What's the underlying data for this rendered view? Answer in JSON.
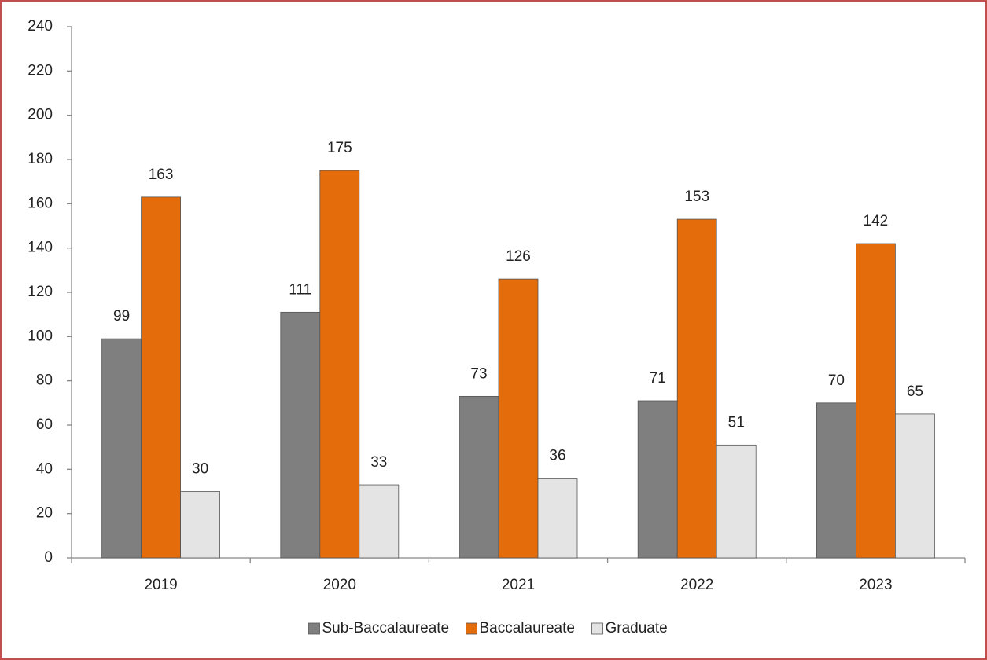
{
  "chart_data": {
    "type": "bar",
    "categories": [
      "2019",
      "2020",
      "2021",
      "2022",
      "2023"
    ],
    "series": [
      {
        "name": "Sub-Baccalaureate",
        "color": "#7f7f7f",
        "values": [
          99,
          111,
          73,
          71,
          70
        ]
      },
      {
        "name": "Baccalaureate",
        "color": "#e46c0a",
        "values": [
          163,
          175,
          126,
          153,
          142
        ]
      },
      {
        "name": "Graduate",
        "color": "#e4e4e4",
        "values": [
          30,
          33,
          36,
          51,
          65
        ]
      }
    ],
    "ylim": [
      0,
      240
    ],
    "yticks": [
      0,
      20,
      40,
      60,
      80,
      100,
      120,
      140,
      160,
      180,
      200,
      220,
      240
    ],
    "grid": false,
    "legend": "bottom"
  }
}
